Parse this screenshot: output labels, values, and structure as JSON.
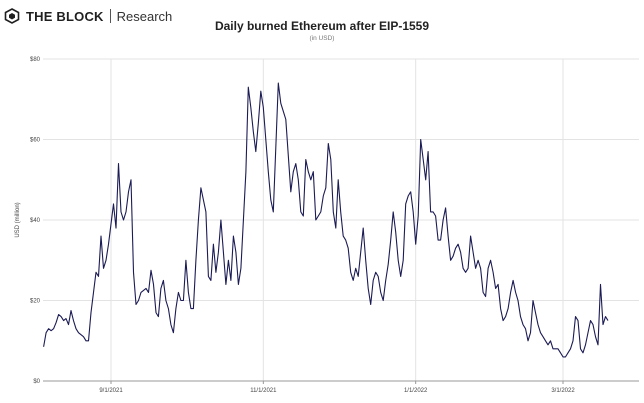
{
  "header": {
    "brand_name": "THE BLOCK",
    "brand_sub": "Research"
  },
  "colors": {
    "line": "#1b1b55",
    "grid": "#e3e3e3",
    "axis": "#999999",
    "logo": "#1f1f1f"
  },
  "chart_data": {
    "type": "line",
    "title": "Daily burned Ethereum after EIP-1559",
    "subtitle": "(in USD)",
    "xlabel": "",
    "ylabel": "USD (million)",
    "ylim": [
      0,
      80
    ],
    "yticks": [
      0,
      20,
      40,
      60,
      80
    ],
    "ytick_labels": [
      "$0",
      "$20",
      "$40",
      "$60",
      "$80"
    ],
    "xticks": [
      "2021-09-01",
      "2021-11-01",
      "2022-01-01",
      "2022-03-01"
    ],
    "xtick_labels": [
      "9/1/2021",
      "11/1/2021",
      "1/1/2022",
      "3/1/2022"
    ],
    "grid": true,
    "x_start": "2021-08-05",
    "series": [
      {
        "values": [
          8.5,
          12,
          13,
          12.5,
          13,
          14.5,
          16.5,
          16,
          15,
          15.5,
          14,
          17.5,
          15,
          13,
          12,
          11.5,
          11,
          10,
          10,
          17,
          22,
          27,
          26,
          36,
          28,
          30,
          34,
          39,
          44,
          38,
          54,
          42,
          40,
          42,
          47,
          50,
          27,
          19,
          20,
          22,
          22.5,
          23,
          22,
          27.5,
          24,
          17,
          16,
          23,
          25,
          20,
          18,
          14,
          12,
          18,
          22,
          20,
          20,
          30,
          22,
          18,
          18,
          30,
          40,
          48,
          45,
          42,
          26,
          25,
          34,
          27,
          32,
          40,
          32,
          24,
          30,
          25,
          36,
          32,
          24,
          28,
          40,
          52,
          73,
          68,
          62,
          57,
          64,
          72,
          68,
          60,
          52,
          45,
          42,
          58,
          74,
          69,
          67,
          65,
          56,
          47,
          52,
          54,
          50,
          42,
          41,
          55,
          52,
          50,
          52,
          40,
          41,
          42,
          46,
          48,
          59,
          55,
          42,
          38,
          50,
          42,
          36,
          35,
          33,
          27,
          25,
          28,
          26,
          32,
          38,
          30,
          23,
          19,
          25,
          27,
          26,
          22,
          20,
          25,
          29,
          35,
          42,
          37,
          30,
          26,
          30,
          44,
          46,
          47,
          42,
          34,
          41,
          60,
          55,
          50,
          57,
          42,
          42,
          41,
          35,
          35,
          40,
          43,
          36,
          30,
          31,
          33,
          34,
          32,
          28,
          27,
          28,
          36,
          32,
          28,
          30,
          28,
          22,
          21,
          28,
          30,
          27,
          23,
          24,
          18,
          15,
          16,
          18,
          22,
          25,
          22,
          20,
          16,
          14,
          13,
          10,
          12,
          20,
          17,
          14,
          12,
          11,
          10,
          9,
          10,
          8,
          8,
          8,
          7,
          6,
          6,
          7,
          8,
          10,
          16,
          15,
          8,
          7,
          9,
          12,
          15,
          14,
          11,
          9,
          24,
          14,
          16,
          15
        ]
      }
    ]
  }
}
